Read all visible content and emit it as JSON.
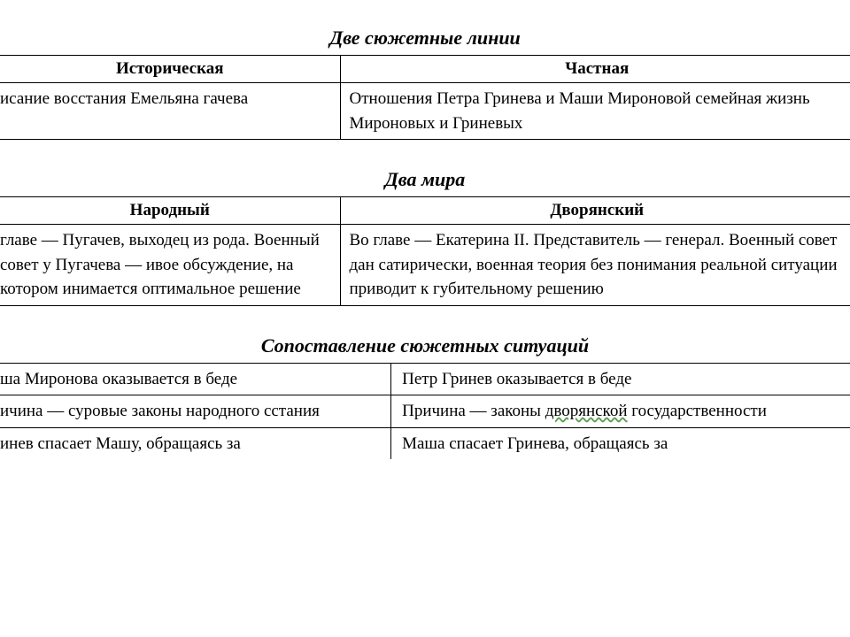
{
  "colors": {
    "background": "#ffffff",
    "text": "#000000",
    "border": "#000000",
    "wavy_underline": "#5a9e4f"
  },
  "typography": {
    "font_family": "Times New Roman",
    "title_fontsize": 22,
    "header_fontsize": 19,
    "cell_fontsize": 19,
    "title_style": "italic bold",
    "line_height": 1.45
  },
  "sections": [
    {
      "title": "Две сюжетные линии",
      "columns": [
        "Историческая",
        "Частная"
      ],
      "rows": [
        [
          "исание восстания Емельяна гачева",
          "Отношения Петра Гринева и Маши Мироновой семейная жизнь Мироновых и Гриневых"
        ]
      ],
      "col_widths": [
        "40%",
        "60%"
      ],
      "has_header": true
    },
    {
      "title": "Два мира",
      "columns": [
        "Народный",
        "Дворянский"
      ],
      "rows": [
        [
          "главе — Пугачев, выходец из рода. Военный совет у Пугачева — ивое обсуждение, на котором инимается оптимальное решение",
          "Во главе — Екатерина II. Представитель — генерал. Военный совет дан сатирически, военная теория без понимания реальной ситуации приводит к губительному решению"
        ]
      ],
      "col_widths": [
        "40%",
        "60%"
      ],
      "has_header": true
    },
    {
      "title": "Сопоставление сюжетных ситуаций",
      "columns": [],
      "rows": [
        [
          "ша Миронова оказывается в беде",
          "Петр Гринев оказывается в беде"
        ],
        [
          "ичина — суровые законы народного сстания",
          "Причина — законы дворянской государственности"
        ],
        [
          "инев спасает Машу, обращаясь за",
          "Маша спасает Гринева, обращаясь за"
        ]
      ],
      "col_widths": [
        "46%",
        "54%"
      ],
      "has_header": false,
      "wavy_underline_text": "дворянской"
    }
  ]
}
